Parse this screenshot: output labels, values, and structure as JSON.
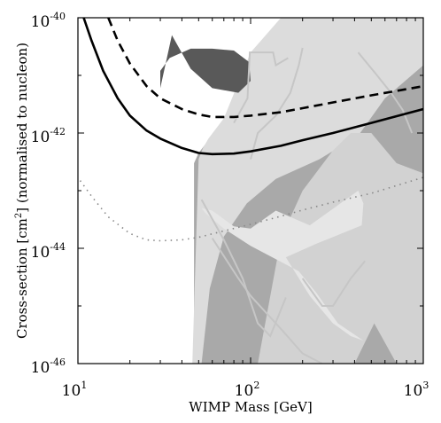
{
  "chart_data": {
    "type": "line",
    "xlabel": "WIMP Mass [GeV]",
    "ylabel": {
      "prefix": "Cross-section [cm",
      "sup": "2",
      "suffix": "] (normalised to nucleon)"
    },
    "x_scale": "log",
    "y_scale": "log",
    "xlim": [
      10,
      1000
    ],
    "ylim": [
      1e-46,
      1e-40
    ],
    "x_ticks": [
      {
        "value": 10,
        "base": "10",
        "exp": "1"
      },
      {
        "value": 100,
        "base": "10",
        "exp": "2"
      },
      {
        "value": 1000,
        "base": "10",
        "exp": "3"
      }
    ],
    "y_ticks": [
      {
        "value": 1e-40,
        "base": "10",
        "exp": "-40"
      },
      {
        "value": 1e-42,
        "base": "10",
        "exp": "-42"
      },
      {
        "value": 1e-44,
        "base": "10",
        "exp": "-44"
      },
      {
        "value": 1e-46,
        "base": "10",
        "exp": "-46"
      }
    ],
    "grid": false,
    "series": [
      {
        "style": "solid",
        "color": "#000000",
        "x": [
          10.8,
          12,
          14,
          17,
          20,
          25,
          30,
          40,
          50,
          60,
          80,
          100,
          150,
          200,
          300,
          500,
          1000
        ],
        "y": [
          1e-40,
          4e-41,
          1.2e-41,
          4e-42,
          2e-42,
          1.1e-42,
          8e-43,
          5.5e-43,
          4.5e-43,
          4.3e-43,
          4.4e-43,
          4.8e-43,
          6e-43,
          7.5e-43,
          1e-42,
          1.5e-42,
          2.6e-42
        ]
      },
      {
        "style": "dashed",
        "color": "#000000",
        "x": [
          15,
          17,
          20,
          25,
          30,
          40,
          50,
          60,
          80,
          100,
          150,
          200,
          300,
          500,
          1000
        ],
        "y": [
          1e-40,
          4e-41,
          1.6e-41,
          6.5e-42,
          4e-42,
          2.6e-42,
          2.1e-42,
          1.9e-42,
          1.9e-42,
          2e-42,
          2.3e-42,
          2.7e-42,
          3.4e-42,
          4.5e-42,
          6.5e-42
        ]
      },
      {
        "style": "dotted",
        "color": "#888888",
        "x": [
          10.3,
          12,
          15,
          20,
          25,
          30,
          40,
          50,
          70,
          100,
          150,
          200,
          300,
          500,
          1000
        ],
        "y": [
          1.5e-43,
          8e-44,
          3.5e-44,
          1.8e-44,
          1.4e-44,
          1.35e-44,
          1.4e-44,
          1.55e-44,
          2e-44,
          2.6e-44,
          3.6e-44,
          4.6e-44,
          6.3e-44,
          9e-44,
          1.7e-43
        ]
      }
    ],
    "regions": [
      {
        "color": "#a9a9a9",
        "x": [
          47,
          47,
          50,
          58,
          90,
          120,
          200,
          260,
          320,
          1000,
          1000,
          47
        ],
        "y": [
          1e-46,
          3e-43,
          4.5e-43,
          8e-43,
          2e-42,
          2.5e-41,
          1.5e-40,
          1e-40,
          1e-40,
          1e-40,
          1e-46,
          1e-46
        ]
      },
      {
        "color": "#dcdcdc",
        "x": [
          46,
          50,
          53,
          57,
          70,
          100,
          150,
          250,
          400,
          600,
          1000,
          1000,
          600,
          420,
          250,
          140,
          95,
          70,
          58,
          52,
          47,
          46
        ],
        "y": [
          1e-46,
          3.5e-43,
          5.5e-43,
          8e-43,
          1.8e-42,
          2.5e-41,
          1e-40,
          1e-40,
          1e-40,
          1e-40,
          1e-40,
          1.5e-41,
          4e-42,
          9e-43,
          3.5e-43,
          1.6e-43,
          6e-44,
          1.6e-44,
          2e-45,
          1e-46,
          1e-46,
          1e-46
        ]
      },
      {
        "color": "#d2d2d2",
        "x": [
          110,
          150,
          200,
          300,
          380,
          500,
          700,
          1000,
          1000,
          700,
          520,
          400,
          300,
          200,
          150,
          110
        ],
        "y": [
          1e-46,
          1.5e-44,
          1e-43,
          5e-43,
          1e-42,
          1e-42,
          3e-43,
          2e-43,
          1e-46,
          1e-46,
          5e-46,
          1e-46,
          1e-46,
          1e-46,
          1e-46,
          1e-46
        ]
      },
      {
        "color": "#e6e6e6",
        "x": [
          52,
          60,
          80,
          100,
          140,
          220,
          420,
          450,
          440,
          240,
          160,
          220,
          300,
          380,
          450,
          320,
          240,
          190,
          140,
          100,
          70,
          55
        ],
        "y": [
          5e-44,
          4.5e-44,
          2.4e-44,
          2.2e-44,
          4.5e-44,
          2.5e-44,
          1e-43,
          6e-44,
          2.5e-44,
          1.2e-44,
          7e-45,
          1.5e-45,
          5e-46,
          3e-46,
          2.5e-46,
          5e-46,
          1.7e-45,
          4e-45,
          6.5e-45,
          1.1e-44,
          2.2e-44,
          4e-44
        ]
      },
      {
        "color": "#595959",
        "x": [
          30,
          35,
          45,
          60,
          85,
          100,
          98,
          80,
          60,
          45,
          34,
          30
        ],
        "y": [
          6e-42,
          5e-41,
          1.3e-41,
          6e-42,
          5e-42,
          8e-42,
          1.7e-41,
          2.7e-41,
          2.9e-41,
          2.9e-41,
          2e-41,
          1.2e-41
        ]
      }
    ],
    "outlines": [
      {
        "color": "#c6c6c6",
        "x": [
          100,
          110,
          140,
          170,
          190,
          200
        ],
        "y": [
          3.5e-43,
          1e-42,
          2e-42,
          5e-42,
          1.5e-41,
          3e-41
        ]
      },
      {
        "color": "#c6c6c6",
        "x": [
          80,
          96,
          99,
          135,
          140,
          165
        ],
        "y": [
          1.5e-42,
          4e-42,
          2.5e-41,
          2.5e-41,
          1.5e-41,
          2e-41
        ]
      },
      {
        "color": "#c6c6c6",
        "x": [
          420,
          540,
          650,
          760,
          860
        ],
        "y": [
          2.5e-41,
          1e-41,
          5e-42,
          2.5e-42,
          1e-42
        ]
      },
      {
        "color": "#c6c6c6",
        "x": [
          52,
          70,
          90,
          110,
          130,
          160
        ],
        "y": [
          7e-44,
          1.4e-44,
          3e-45,
          5e-46,
          3e-46,
          1.4e-45
        ]
      },
      {
        "color": "#c6c6c6",
        "x": [
          200,
          260,
          300,
          380,
          460
        ],
        "y": [
          3e-45,
          1e-45,
          1e-45,
          3e-45,
          6e-45
        ]
      },
      {
        "color": "#c6c6c6",
        "x": [
          60,
          85,
          100,
          150,
          200,
          260
        ],
        "y": [
          1.5e-44,
          3e-45,
          1.5e-45,
          4e-46,
          1.5e-46,
          1e-46
        ]
      }
    ]
  }
}
